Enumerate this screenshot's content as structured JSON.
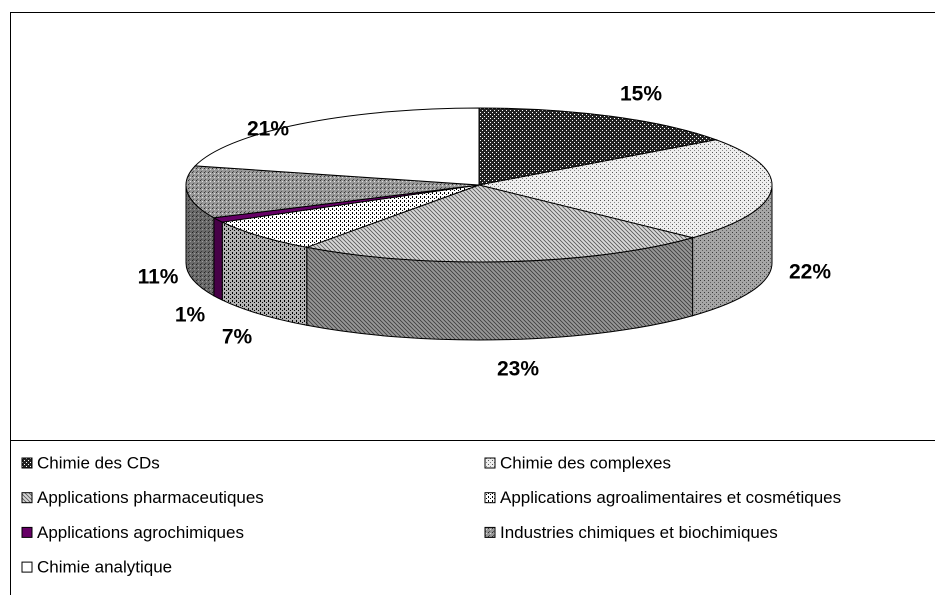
{
  "chart_data": {
    "type": "pie3d",
    "categories": [
      "Chimie des CDs",
      "Chimie des complexes",
      "Applications pharmaceutiques",
      "Applications agroalimentaires et cosmétiques",
      "Applications agrochimiques",
      "Industries chimiques et biochimiques",
      "Chimie analytique"
    ],
    "values": [
      15,
      22,
      23,
      7,
      1,
      11,
      21
    ],
    "value_labels": [
      "15%",
      "22%",
      "23%",
      "7%",
      "1%",
      "11%",
      "21%"
    ],
    "colors": [
      "#222222",
      "#eeeeee",
      "#d8d8d8",
      "#ffffff",
      "#660066",
      "#999999",
      "#ffffff"
    ]
  }
}
